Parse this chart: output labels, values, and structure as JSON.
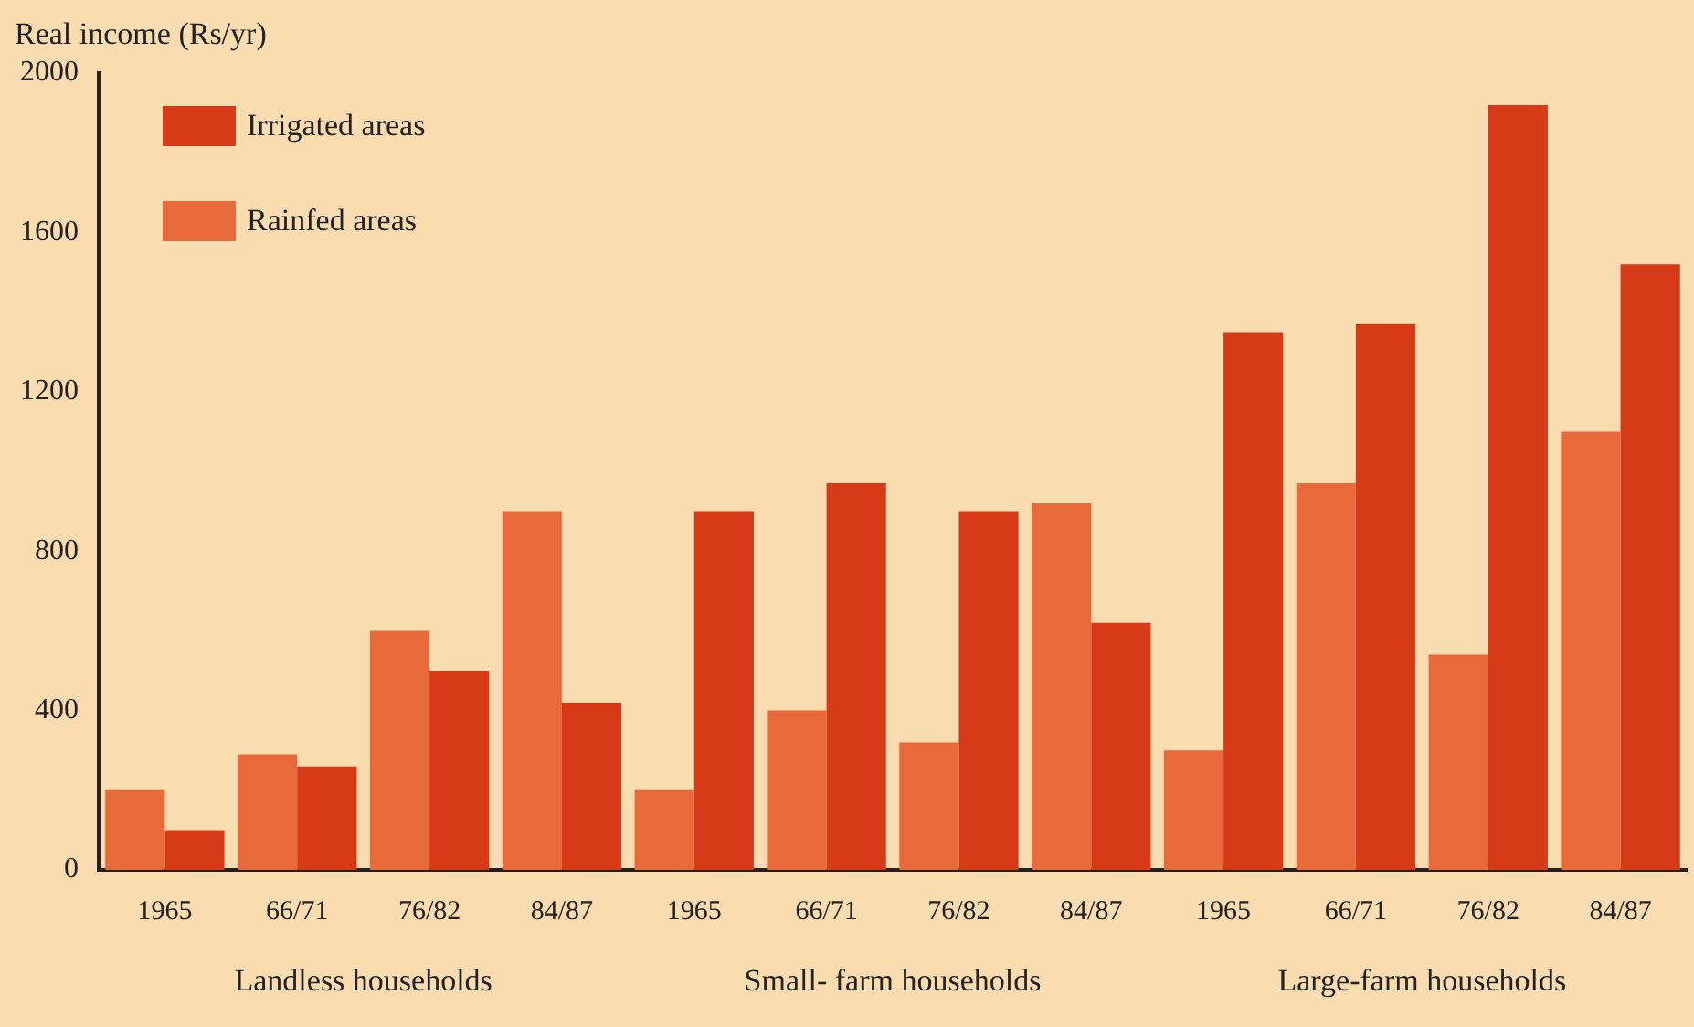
{
  "chart_data": {
    "type": "bar",
    "ylabel": "Real income (Rs/yr)",
    "categories": [
      "1965",
      "66/71",
      "76/82",
      "84/87",
      "1965",
      "66/71",
      "76/82",
      "84/87",
      "1965",
      "66/71",
      "76/82",
      "84/87"
    ],
    "series": [
      {
        "name": "Rainfed areas",
        "color": "#e8693a",
        "values": [
          200,
          290,
          600,
          900,
          200,
          400,
          320,
          920,
          300,
          970,
          540,
          1100
        ]
      },
      {
        "name": "Irrigated areas",
        "color": "#d63a16",
        "values": [
          100,
          260,
          500,
          420,
          900,
          970,
          900,
          620,
          1350,
          1370,
          1920,
          1520
        ]
      }
    ],
    "annotations": [
      "Landless households",
      "Small- farm households",
      "Large-farm households"
    ],
    "ylim": [
      0,
      2000
    ],
    "yticks": [
      0,
      400,
      800,
      1200,
      1600,
      2000
    ],
    "grid": false,
    "legend": "top left"
  }
}
